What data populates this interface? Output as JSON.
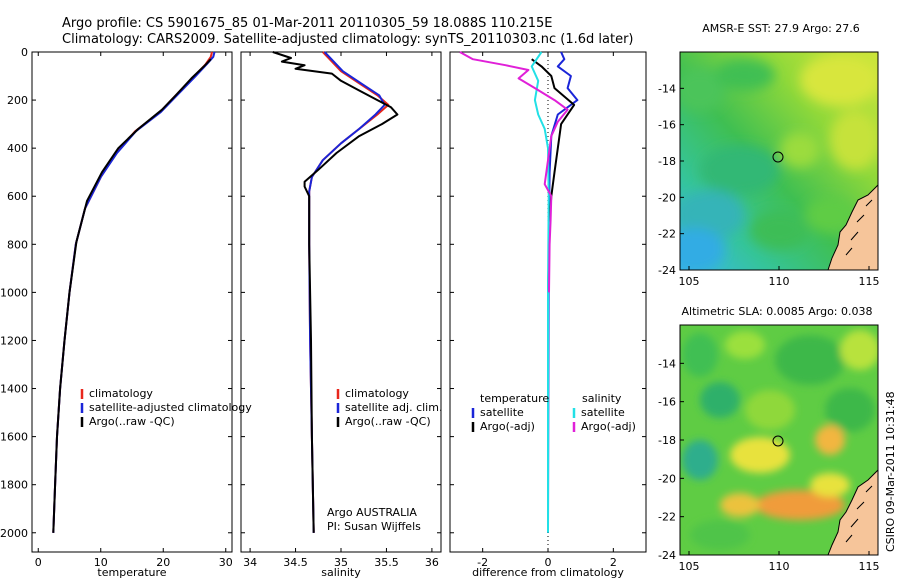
{
  "header": {
    "line1": "Argo profile: CS 5901675_85 01-Mar-2011 20110305_59 18.088S 110.215E",
    "line2": "Climatology: CARS2009. Satellite-adjusted climatology: synTS_20110303.nc (1.6d later)"
  },
  "side_label": "CSIRO 09-Mar-2011 10:31:48",
  "colors": {
    "clim": "#e8261c",
    "sat": "#1a25d8",
    "argo": "#000000",
    "sat_sal": "#22e0e6",
    "argo_sal": "#e020d8"
  },
  "chart_data": [
    {
      "type": "line",
      "xlabel": "temperature",
      "xlim": [
        -1,
        31
      ],
      "ylim": [
        2080,
        0
      ],
      "xticks": [
        "0",
        "10",
        "20",
        "30"
      ],
      "xtick_values": [
        0,
        10,
        20,
        30
      ],
      "yticks": [
        "0",
        "200",
        "400",
        "600",
        "800",
        "1000",
        "1200",
        "1400",
        "1600",
        "1800",
        "2000"
      ],
      "ytick_values": [
        0,
        200,
        400,
        600,
        800,
        1000,
        1200,
        1400,
        1600,
        1800,
        2000
      ],
      "legend": [
        "climatology",
        "satellite-adjusted climatology",
        "Argo(..raw -QC)"
      ],
      "series": [
        {
          "name": "climatology",
          "color": "clim",
          "points": [
            [
              27.8,
              0
            ],
            [
              27.6,
              20
            ],
            [
              26.8,
              50
            ],
            [
              25.0,
              100
            ],
            [
              22.0,
              180
            ],
            [
              19.5,
              250
            ],
            [
              15.5,
              330
            ],
            [
              12.5,
              420
            ],
            [
              10.0,
              520
            ],
            [
              7.5,
              650
            ],
            [
              6.0,
              800
            ],
            [
              5.0,
              1000
            ],
            [
              4.2,
              1200
            ],
            [
              3.5,
              1400
            ],
            [
              3.0,
              1600
            ],
            [
              2.7,
              1800
            ],
            [
              2.4,
              2000
            ]
          ]
        },
        {
          "name": "satellite-adjusted climatology",
          "color": "sat",
          "points": [
            [
              28.2,
              0
            ],
            [
              28.0,
              20
            ],
            [
              27.0,
              50
            ],
            [
              25.2,
              100
            ],
            [
              22.2,
              180
            ],
            [
              19.6,
              250
            ],
            [
              15.6,
              330
            ],
            [
              12.6,
              420
            ],
            [
              10.0,
              520
            ],
            [
              7.5,
              650
            ],
            [
              6.0,
              800
            ],
            [
              5.0,
              1000
            ],
            [
              4.2,
              1200
            ],
            [
              3.5,
              1400
            ],
            [
              3.0,
              1600
            ],
            [
              2.7,
              1800
            ],
            [
              2.4,
              2000
            ]
          ]
        },
        {
          "name": "Argo(..raw -QC)",
          "color": "argo",
          "points": [
            [
              27.6,
              30
            ],
            [
              26.5,
              60
            ],
            [
              24.5,
              110
            ],
            [
              22.0,
              180
            ],
            [
              19.8,
              240
            ],
            [
              16.0,
              320
            ],
            [
              12.8,
              400
            ],
            [
              10.2,
              500
            ],
            [
              7.8,
              620
            ],
            [
              6.1,
              790
            ],
            [
              5.0,
              1000
            ],
            [
              4.2,
              1200
            ],
            [
              3.5,
              1400
            ],
            [
              3.0,
              1600
            ],
            [
              2.7,
              1800
            ],
            [
              2.4,
              2000
            ]
          ]
        }
      ]
    },
    {
      "type": "line",
      "xlabel": "salinity",
      "xlim": [
        33.9,
        36.1
      ],
      "ylim": [
        2080,
        0
      ],
      "xticks": [
        "34",
        "34.5",
        "35",
        "35.5",
        "36"
      ],
      "xtick_values": [
        34,
        34.5,
        35,
        35.5,
        36
      ],
      "legend": [
        "climatology",
        "satellite adj. clim.",
        "Argo(..raw -QC)"
      ],
      "note": [
        "Argo AUSTRALIA",
        "PI: Susan Wijffels"
      ],
      "series": [
        {
          "name": "climatology",
          "color": "clim",
          "points": [
            [
              34.8,
              0
            ],
            [
              34.9,
              40
            ],
            [
              35.0,
              80
            ],
            [
              35.2,
              130
            ],
            [
              35.4,
              180
            ],
            [
              35.52,
              220
            ],
            [
              35.4,
              260
            ],
            [
              35.2,
              320
            ],
            [
              35.0,
              380
            ],
            [
              34.8,
              450
            ],
            [
              34.68,
              520
            ],
            [
              34.65,
              580
            ],
            [
              34.65,
              800
            ],
            [
              34.66,
              1200
            ],
            [
              34.68,
              1600
            ],
            [
              34.7,
              2000
            ]
          ]
        },
        {
          "name": "satellite adj. clim.",
          "color": "sat",
          "points": [
            [
              34.82,
              0
            ],
            [
              34.92,
              40
            ],
            [
              35.02,
              80
            ],
            [
              35.22,
              130
            ],
            [
              35.42,
              180
            ],
            [
              35.48,
              220
            ],
            [
              35.38,
              260
            ],
            [
              35.2,
              320
            ],
            [
              35.0,
              380
            ],
            [
              34.8,
              450
            ],
            [
              34.68,
              520
            ],
            [
              34.65,
              580
            ],
            [
              34.65,
              800
            ],
            [
              34.66,
              1200
            ],
            [
              34.68,
              1600
            ],
            [
              34.7,
              2000
            ]
          ]
        },
        {
          "name": "Argo(..raw -QC)",
          "color": "argo",
          "points": [
            [
              34.25,
              0
            ],
            [
              34.45,
              25
            ],
            [
              34.35,
              40
            ],
            [
              34.6,
              55
            ],
            [
              34.5,
              70
            ],
            [
              34.9,
              90
            ],
            [
              35.0,
              120
            ],
            [
              35.2,
              160
            ],
            [
              35.4,
              200
            ],
            [
              35.55,
              230
            ],
            [
              35.62,
              260
            ],
            [
              35.45,
              300
            ],
            [
              35.2,
              350
            ],
            [
              34.95,
              420
            ],
            [
              34.75,
              490
            ],
            [
              34.6,
              540
            ],
            [
              34.6,
              560
            ],
            [
              34.65,
              600
            ],
            [
              34.65,
              800
            ],
            [
              34.67,
              1200
            ],
            [
              34.68,
              1600
            ],
            [
              34.7,
              2000
            ]
          ]
        }
      ]
    },
    {
      "type": "line",
      "xlabel": "difference from climatology",
      "xlim": [
        -3,
        3
      ],
      "ylim": [
        2080,
        0
      ],
      "xticks": [
        "-2",
        "0",
        "2"
      ],
      "xtick_values": [
        -2,
        0,
        2
      ],
      "legend_left_title": "temperature",
      "legend_right_title": "salinity",
      "legend_left": [
        "satellite",
        "Argo(-adj)"
      ],
      "legend_right": [
        "satellite",
        "Argo(-adj)"
      ],
      "series": [
        {
          "name": "temperature satellite",
          "color": "sat",
          "points": [
            [
              0.4,
              0
            ],
            [
              0.5,
              30
            ],
            [
              0.3,
              60
            ],
            [
              0.7,
              100
            ],
            [
              0.6,
              150
            ],
            [
              0.9,
              200
            ],
            [
              0.3,
              260
            ],
            [
              0.1,
              350
            ],
            [
              0.05,
              500
            ],
            [
              0.02,
              800
            ],
            [
              0.0,
              2000
            ]
          ]
        },
        {
          "name": "temperature Argo(-adj)",
          "color": "argo",
          "points": [
            [
              -0.5,
              30
            ],
            [
              -0.2,
              60
            ],
            [
              0.1,
              100
            ],
            [
              0.2,
              150
            ],
            [
              0.8,
              220
            ],
            [
              0.4,
              300
            ],
            [
              0.3,
              400
            ],
            [
              0.2,
              500
            ],
            [
              0.1,
              600
            ],
            [
              0.05,
              700
            ],
            [
              0.0,
              1000
            ],
            [
              0.0,
              2000
            ]
          ]
        },
        {
          "name": "salinity satellite",
          "color": "sat_sal",
          "points": [
            [
              -0.2,
              0
            ],
            [
              -0.5,
              60
            ],
            [
              -0.3,
              120
            ],
            [
              -0.4,
              200
            ],
            [
              -0.3,
              260
            ],
            [
              -0.1,
              320
            ],
            [
              0.0,
              400
            ],
            [
              0.02,
              600
            ],
            [
              0.0,
              1000
            ],
            [
              0.0,
              2000
            ]
          ]
        },
        {
          "name": "salinity Argo(-adj)",
          "color": "argo_sal",
          "points": [
            [
              -2.7,
              0
            ],
            [
              -2.3,
              30
            ],
            [
              -1.3,
              55
            ],
            [
              -0.6,
              75
            ],
            [
              -0.9,
              110
            ],
            [
              -0.4,
              150
            ],
            [
              0.2,
              200
            ],
            [
              0.6,
              240
            ],
            [
              0.3,
              290
            ],
            [
              0.1,
              350
            ],
            [
              0.0,
              450
            ],
            [
              -0.1,
              550
            ],
            [
              0.1,
              600
            ],
            [
              0.08,
              700
            ],
            [
              0.05,
              800
            ],
            [
              0.03,
              1000
            ]
          ]
        }
      ]
    },
    {
      "type": "heatmap",
      "title": "AMSR-E SST: 27.9 Argo: 27.6",
      "xlim": [
        104.5,
        115.5
      ],
      "ylim": [
        -24,
        -12
      ],
      "xticks": [
        "105",
        "110",
        "115"
      ],
      "xtick_values": [
        105,
        110,
        115
      ],
      "yticks": [
        "-14",
        "-16",
        "-18",
        "-20",
        "-22",
        "-24"
      ],
      "ytick_values": [
        -14,
        -16,
        -18,
        -20,
        -22,
        -24
      ],
      "marker": [
        110.2,
        -18.1
      ]
    },
    {
      "type": "heatmap",
      "title": "Altimetric SLA: 0.0085 Argo: 0.038",
      "xlim": [
        104.5,
        115.5
      ],
      "ylim": [
        -24,
        -12
      ],
      "xticks": [
        "105",
        "110",
        "115"
      ],
      "xtick_values": [
        105,
        110,
        115
      ],
      "yticks": [
        "-14",
        "-16",
        "-18",
        "-20",
        "-22",
        "-24"
      ],
      "ytick_values": [
        -14,
        -16,
        -18,
        -20,
        -22,
        -24
      ],
      "marker": [
        110.2,
        -18.1
      ]
    }
  ]
}
